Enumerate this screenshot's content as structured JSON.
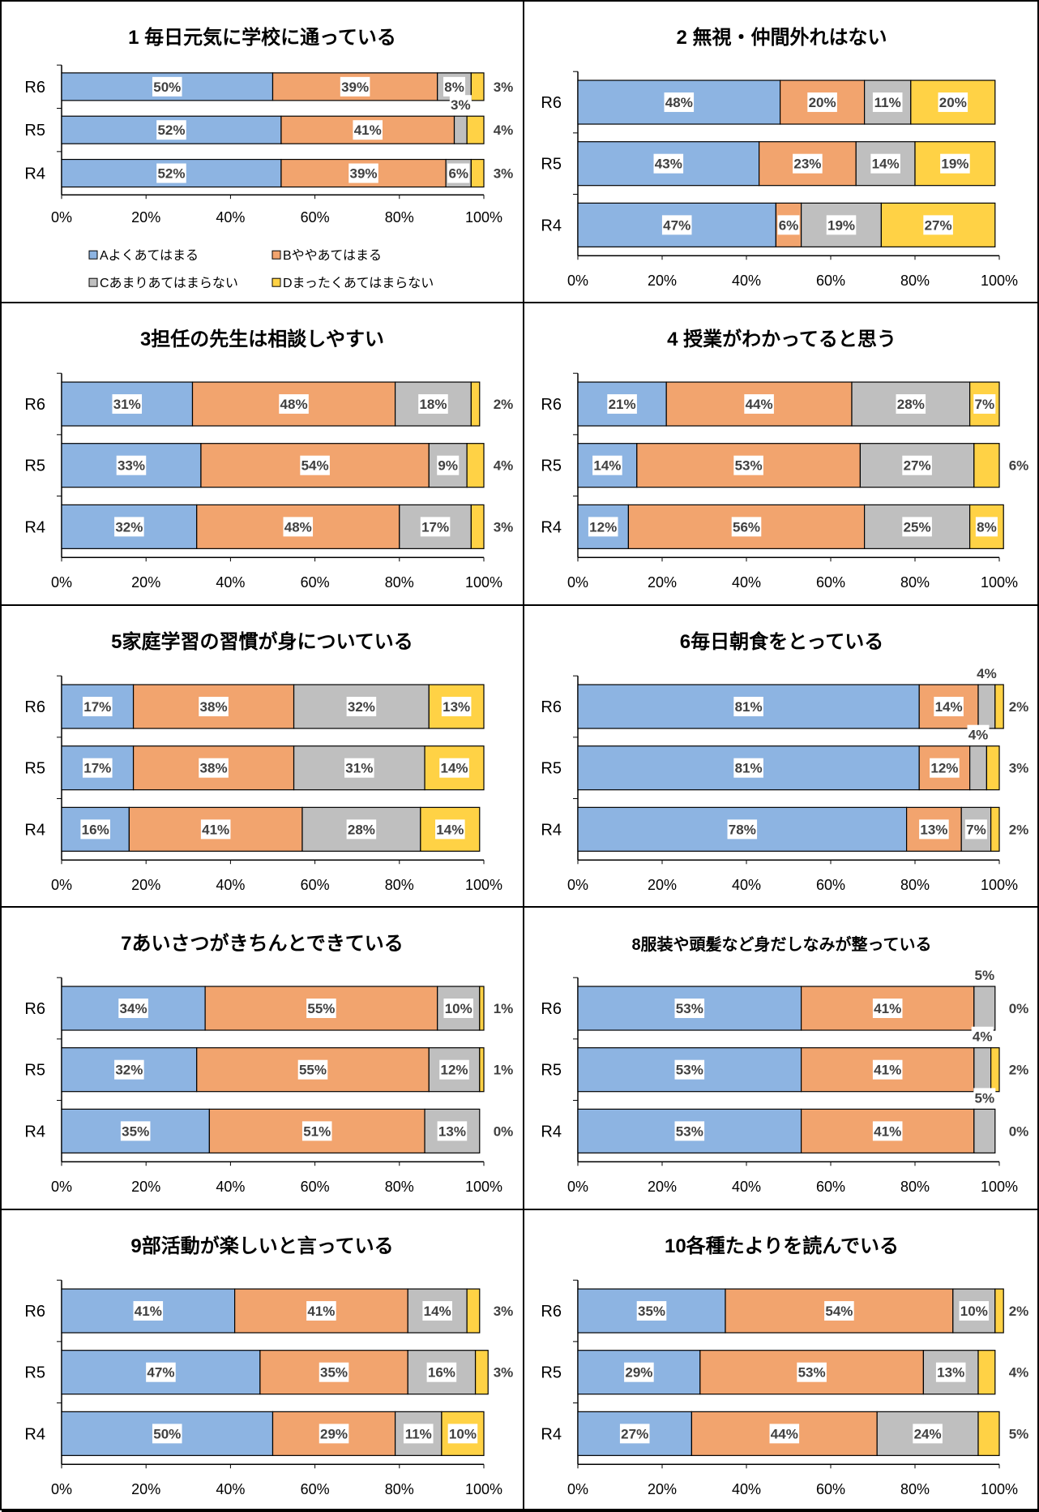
{
  "legend": {
    "A": "Aよくあてはまる",
    "B": "Bややあてはまる",
    "C": "Cあまりあてはまらない",
    "D": "Dまったくあてはまらない"
  },
  "colors": {
    "A": "#8db4e2",
    "B": "#f2a46e",
    "C": "#bfbfbf",
    "D": "#ffd245"
  },
  "chart_data": [
    {
      "type": "bar",
      "orientation": "horizontal",
      "stacked": true,
      "title": "1 毎日元気に学校に通っている",
      "categories": [
        "R6",
        "R5",
        "R4"
      ],
      "series": [
        {
          "key": "A",
          "values": [
            50,
            52,
            52
          ],
          "labels": [
            "50%",
            "52%",
            "52%"
          ]
        },
        {
          "key": "B",
          "values": [
            39,
            41,
            39
          ],
          "labels": [
            "39%",
            "41%",
            "39%"
          ]
        },
        {
          "key": "C",
          "values": [
            8,
            3,
            6
          ],
          "labels": [
            "8%",
            "3%",
            "6%"
          ]
        },
        {
          "key": "D",
          "values": [
            3,
            4,
            3
          ],
          "labels": [
            "3%",
            "4%",
            "3%"
          ]
        }
      ],
      "xlim": [
        0,
        100
      ],
      "xticks": [
        "0%",
        "20%",
        "40%",
        "60%",
        "80%",
        "100%"
      ],
      "legend": "bottom"
    },
    {
      "type": "bar",
      "orientation": "horizontal",
      "stacked": true,
      "title": "2 無視・仲間外れはない",
      "categories": [
        "R6",
        "R5",
        "R4"
      ],
      "series": [
        {
          "key": "A",
          "values": [
            48,
            43,
            47
          ],
          "labels": [
            "48%",
            "43%",
            "47%"
          ]
        },
        {
          "key": "B",
          "values": [
            20,
            23,
            6
          ],
          "labels": [
            "20%",
            "23%",
            "6%"
          ]
        },
        {
          "key": "C",
          "values": [
            11,
            14,
            19
          ],
          "labels": [
            "11%",
            "14%",
            "19%"
          ]
        },
        {
          "key": "D",
          "values": [
            20,
            19,
            27
          ],
          "labels": [
            "20%",
            "19%",
            "27%"
          ]
        }
      ],
      "xlim": [
        0,
        100
      ],
      "xticks": [
        "0%",
        "20%",
        "40%",
        "60%",
        "80%",
        "100%"
      ]
    },
    {
      "type": "bar",
      "orientation": "horizontal",
      "stacked": true,
      "title": "3担任の先生は相談しやすい",
      "categories": [
        "R6",
        "R5",
        "R4"
      ],
      "series": [
        {
          "key": "A",
          "values": [
            31,
            33,
            32
          ],
          "labels": [
            "31%",
            "33%",
            "32%"
          ]
        },
        {
          "key": "B",
          "values": [
            48,
            54,
            48
          ],
          "labels": [
            "48%",
            "54%",
            "48%"
          ]
        },
        {
          "key": "C",
          "values": [
            18,
            9,
            17
          ],
          "labels": [
            "18%",
            "9%",
            "17%"
          ]
        },
        {
          "key": "D",
          "values": [
            2,
            4,
            3
          ],
          "labels": [
            "2%",
            "4%",
            "3%"
          ]
        }
      ],
      "xlim": [
        0,
        100
      ],
      "xticks": [
        "0%",
        "20%",
        "40%",
        "60%",
        "80%",
        "100%"
      ]
    },
    {
      "type": "bar",
      "orientation": "horizontal",
      "stacked": true,
      "title": "4 授業がわかってると思う",
      "categories": [
        "R6",
        "R5",
        "R4"
      ],
      "series": [
        {
          "key": "A",
          "values": [
            21,
            14,
            12
          ],
          "labels": [
            "21%",
            "14%",
            "12%"
          ]
        },
        {
          "key": "B",
          "values": [
            44,
            53,
            56
          ],
          "labels": [
            "44%",
            "53%",
            "56%"
          ]
        },
        {
          "key": "C",
          "values": [
            28,
            27,
            25
          ],
          "labels": [
            "28%",
            "27%",
            "25%"
          ]
        },
        {
          "key": "D",
          "values": [
            7,
            6,
            8
          ],
          "labels": [
            "7%",
            "6%",
            "8%"
          ]
        }
      ],
      "xlim": [
        0,
        100
      ],
      "xticks": [
        "0%",
        "20%",
        "40%",
        "60%",
        "80%",
        "100%"
      ]
    },
    {
      "type": "bar",
      "orientation": "horizontal",
      "stacked": true,
      "title": "5家庭学習の習慣が身についている",
      "categories": [
        "R6",
        "R5",
        "R4"
      ],
      "series": [
        {
          "key": "A",
          "values": [
            17,
            17,
            16
          ],
          "labels": [
            "17%",
            "17%",
            "16%"
          ]
        },
        {
          "key": "B",
          "values": [
            38,
            38,
            41
          ],
          "labels": [
            "38%",
            "38%",
            "41%"
          ]
        },
        {
          "key": "C",
          "values": [
            32,
            31,
            28
          ],
          "labels": [
            "32%",
            "31%",
            "28%"
          ]
        },
        {
          "key": "D",
          "values": [
            13,
            14,
            14
          ],
          "labels": [
            "13%",
            "14%",
            "14%"
          ]
        }
      ],
      "xlim": [
        0,
        100
      ],
      "xticks": [
        "0%",
        "20%",
        "40%",
        "60%",
        "80%",
        "100%"
      ]
    },
    {
      "type": "bar",
      "orientation": "horizontal",
      "stacked": true,
      "title": "6毎日朝食をとっている",
      "categories": [
        "R6",
        "R5",
        "R4"
      ],
      "series": [
        {
          "key": "A",
          "values": [
            81,
            81,
            78
          ],
          "labels": [
            "81%",
            "81%",
            "78%"
          ]
        },
        {
          "key": "B",
          "values": [
            14,
            12,
            13
          ],
          "labels": [
            "14%",
            "12%",
            "13%"
          ]
        },
        {
          "key": "C",
          "values": [
            4,
            4,
            7
          ],
          "labels": [
            "4%",
            "4%",
            "7%"
          ]
        },
        {
          "key": "D",
          "values": [
            2,
            3,
            2
          ],
          "labels": [
            "2%",
            "3%",
            "2%"
          ]
        }
      ],
      "xlim": [
        0,
        100
      ],
      "xticks": [
        "0%",
        "20%",
        "40%",
        "60%",
        "80%",
        "100%"
      ]
    },
    {
      "type": "bar",
      "orientation": "horizontal",
      "stacked": true,
      "title": "7あいさつがきちんとできている",
      "categories": [
        "R6",
        "R5",
        "R4"
      ],
      "series": [
        {
          "key": "A",
          "values": [
            34,
            32,
            35
          ],
          "labels": [
            "34%",
            "32%",
            "35%"
          ]
        },
        {
          "key": "B",
          "values": [
            55,
            55,
            51
          ],
          "labels": [
            "55%",
            "55%",
            "51%"
          ]
        },
        {
          "key": "C",
          "values": [
            10,
            12,
            13
          ],
          "labels": [
            "10%",
            "12%",
            "13%"
          ]
        },
        {
          "key": "D",
          "values": [
            1,
            1,
            0
          ],
          "labels": [
            "1%",
            "1%",
            "0%"
          ]
        }
      ],
      "xlim": [
        0,
        100
      ],
      "xticks": [
        "0%",
        "20%",
        "40%",
        "60%",
        "80%",
        "100%"
      ]
    },
    {
      "type": "bar",
      "orientation": "horizontal",
      "stacked": true,
      "title": "8服装や頭髪など身だしなみが整っている",
      "categories": [
        "R6",
        "R5",
        "R4"
      ],
      "series": [
        {
          "key": "A",
          "values": [
            53,
            53,
            53
          ],
          "labels": [
            "53%",
            "53%",
            "53%"
          ]
        },
        {
          "key": "B",
          "values": [
            41,
            41,
            41
          ],
          "labels": [
            "41%",
            "41%",
            "41%"
          ]
        },
        {
          "key": "C",
          "values": [
            5,
            4,
            5
          ],
          "labels": [
            "5%",
            "4%",
            "5%"
          ]
        },
        {
          "key": "D",
          "values": [
            0,
            2,
            0
          ],
          "labels": [
            "0%",
            "2%",
            "0%"
          ]
        }
      ],
      "xlim": [
        0,
        100
      ],
      "xticks": [
        "0%",
        "20%",
        "40%",
        "60%",
        "80%",
        "100%"
      ]
    },
    {
      "type": "bar",
      "orientation": "horizontal",
      "stacked": true,
      "title": "9部活動が楽しいと言っている",
      "categories": [
        "R6",
        "R5",
        "R4"
      ],
      "series": [
        {
          "key": "A",
          "values": [
            41,
            47,
            50
          ],
          "labels": [
            "41%",
            "47%",
            "50%"
          ]
        },
        {
          "key": "B",
          "values": [
            41,
            35,
            29
          ],
          "labels": [
            "41%",
            "35%",
            "29%"
          ]
        },
        {
          "key": "C",
          "values": [
            14,
            16,
            11
          ],
          "labels": [
            "14%",
            "16%",
            "11%"
          ]
        },
        {
          "key": "D",
          "values": [
            3,
            3,
            10
          ],
          "labels": [
            "3%",
            "3%",
            "10%"
          ]
        }
      ],
      "xlim": [
        0,
        100
      ],
      "xticks": [
        "0%",
        "20%",
        "40%",
        "60%",
        "80%",
        "100%"
      ]
    },
    {
      "type": "bar",
      "orientation": "horizontal",
      "stacked": true,
      "title": "10各種たよりを読んでいる",
      "categories": [
        "R6",
        "R5",
        "R4"
      ],
      "series": [
        {
          "key": "A",
          "values": [
            35,
            29,
            27
          ],
          "labels": [
            "35%",
            "29%",
            "27%"
          ]
        },
        {
          "key": "B",
          "values": [
            54,
            53,
            44
          ],
          "labels": [
            "54%",
            "53%",
            "44%"
          ]
        },
        {
          "key": "C",
          "values": [
            10,
            13,
            24
          ],
          "labels": [
            "10%",
            "13%",
            "24%"
          ]
        },
        {
          "key": "D",
          "values": [
            2,
            4,
            5
          ],
          "labels": [
            "2%",
            "4%",
            "5%"
          ]
        }
      ],
      "xlim": [
        0,
        100
      ],
      "xticks": [
        "0%",
        "20%",
        "40%",
        "60%",
        "80%",
        "100%"
      ]
    }
  ]
}
